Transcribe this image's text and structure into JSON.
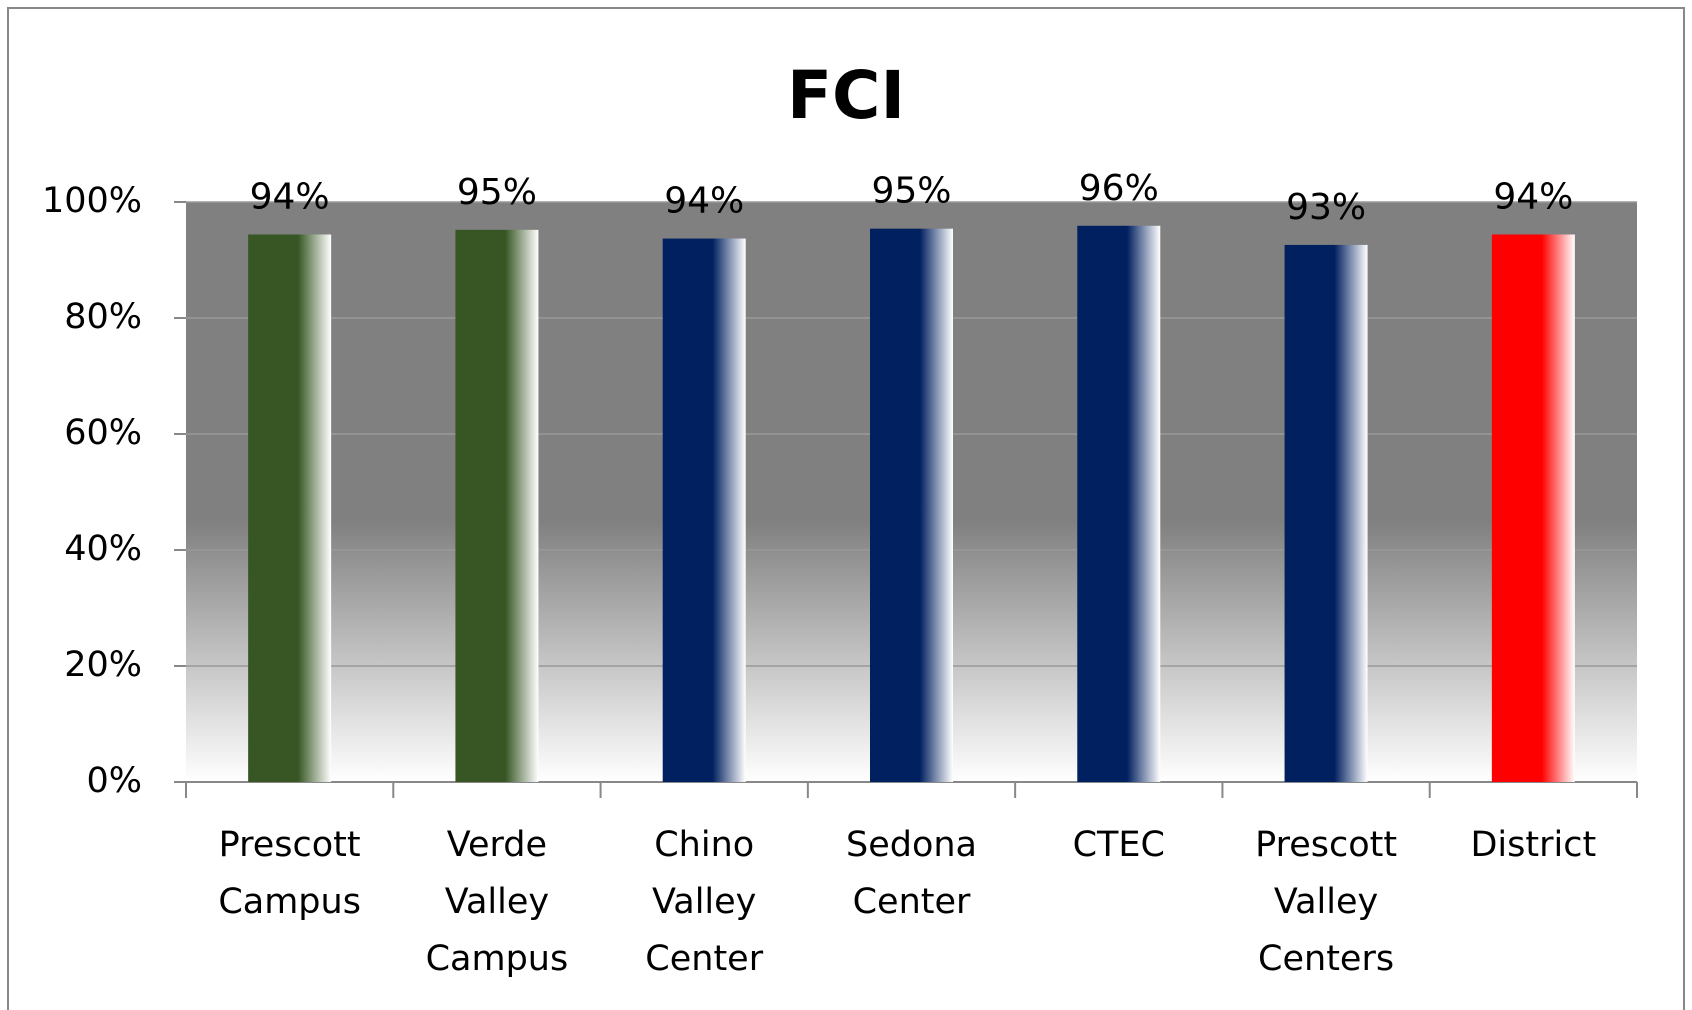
{
  "chart_data": {
    "type": "bar",
    "title": "FCI",
    "categories": [
      "Prescott Campus",
      "Verde Valley Campus",
      "Chino Valley Center",
      "Sedona Center",
      "CTEC",
      "Prescott Valley Centers",
      "District"
    ],
    "values": [
      94.4,
      95.2,
      93.7,
      95.4,
      95.9,
      92.6,
      94.4
    ],
    "value_labels": [
      "94%",
      "95%",
      "94%",
      "95%",
      "96%",
      "93%",
      "94%"
    ],
    "colors": [
      "#375623",
      "#375623",
      "#002060",
      "#002060",
      "#002060",
      "#002060",
      "#ff0000"
    ],
    "ylim": [
      0,
      100
    ],
    "yticks": [
      {
        "value": 0,
        "label": "0%"
      },
      {
        "value": 20,
        "label": "20%"
      },
      {
        "value": 40,
        "label": "40%"
      },
      {
        "value": 60,
        "label": "60%"
      },
      {
        "value": 80,
        "label": "80%"
      },
      {
        "value": 100,
        "label": "100%"
      }
    ],
    "grid": true
  }
}
